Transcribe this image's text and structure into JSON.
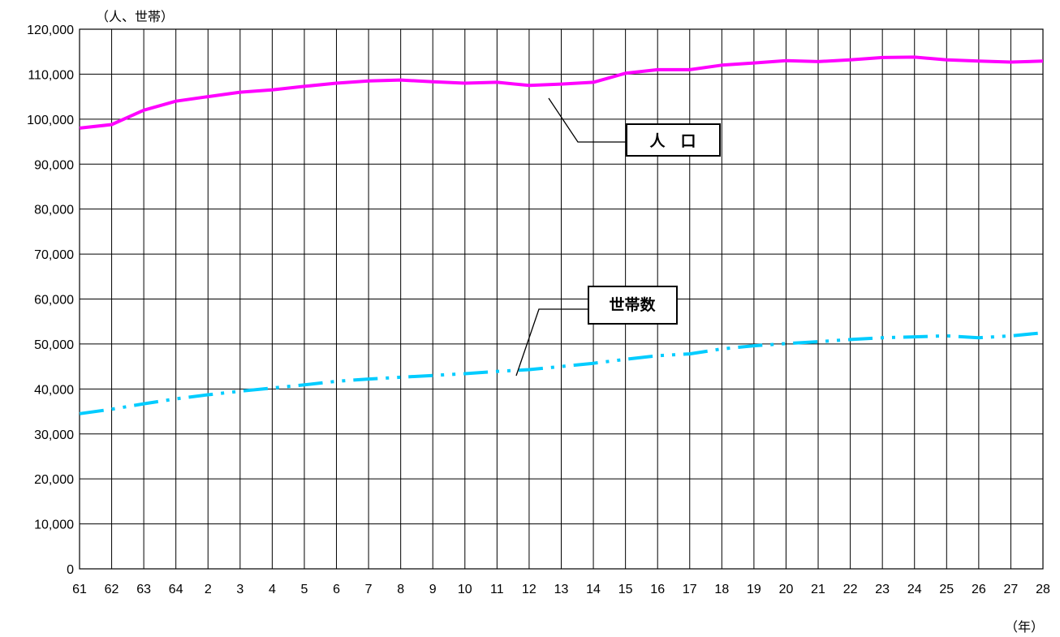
{
  "chart_data": {
    "type": "line",
    "ylabel": "（人、世帯）",
    "xlabel": "（年）",
    "ylim": [
      0,
      120000
    ],
    "y_ticks": [
      "0",
      "10,000",
      "20,000",
      "30,000",
      "40,000",
      "50,000",
      "60,000",
      "70,000",
      "80,000",
      "90,000",
      "100,000",
      "110,000",
      "120,000"
    ],
    "categories": [
      "61",
      "62",
      "63",
      "64",
      "2",
      "3",
      "4",
      "5",
      "6",
      "7",
      "8",
      "9",
      "10",
      "11",
      "12",
      "13",
      "14",
      "15",
      "16",
      "17",
      "18",
      "19",
      "20",
      "21",
      "22",
      "23",
      "24",
      "25",
      "26",
      "27",
      "28"
    ],
    "grid": true,
    "series": [
      {
        "name": "人　口",
        "color": "#ff00ff",
        "style": "solid",
        "values": [
          98000,
          98800,
          102000,
          104000,
          105000,
          106000,
          106500,
          107300,
          108000,
          108500,
          108700,
          108300,
          108000,
          108200,
          107500,
          107800,
          108200,
          110200,
          111000,
          111000,
          112000,
          112500,
          113000,
          112800,
          113200,
          113700,
          113800,
          113200,
          112900,
          112700,
          112900
        ]
      },
      {
        "name": "世帯数",
        "color": "#00ccff",
        "style": "dash-dot-dot",
        "values": [
          34500,
          35500,
          36700,
          37800,
          38700,
          39500,
          40200,
          40900,
          41700,
          42200,
          42600,
          43000,
          43400,
          43900,
          44300,
          45000,
          45700,
          46600,
          47400,
          47800,
          48900,
          49600,
          50100,
          50500,
          51000,
          51400,
          51600,
          51800,
          51400,
          51800,
          52500
        ]
      }
    ]
  }
}
